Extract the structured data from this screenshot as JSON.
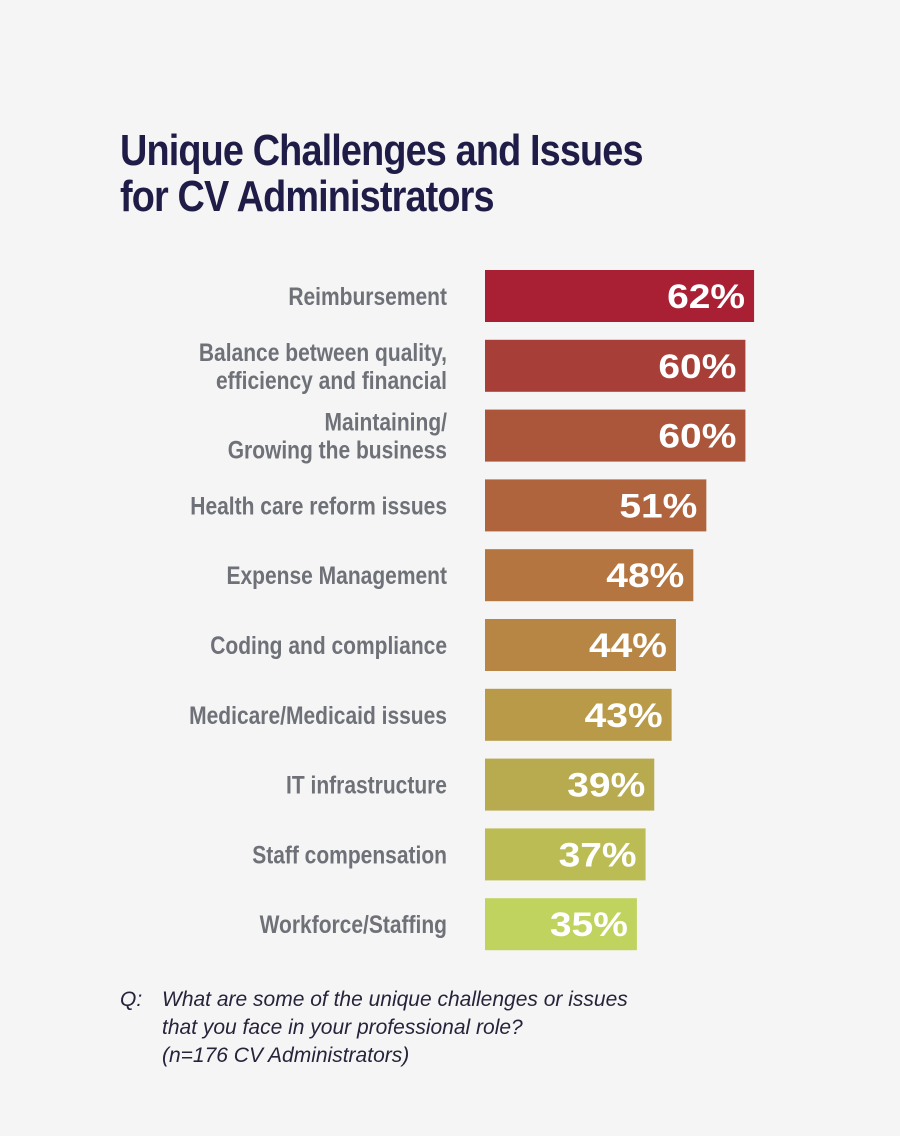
{
  "chart_data": {
    "type": "bar",
    "orientation": "horizontal",
    "title": "Unique Challenges and Issues for CV Administrators",
    "title_lines": [
      "Unique Challenges and Issues",
      "for CV Administrators"
    ],
    "categories": [
      "Reimbursement",
      "Balance between quality, efficiency and financial",
      "Maintaining/ Growing the business",
      "Health care reform issues",
      "Expense Management",
      "Coding and compliance",
      "Medicare/Medicaid issues",
      "IT infrastructure",
      "Staff compensation",
      "Workforce/Staffing"
    ],
    "category_lines": [
      [
        "Reimbursement"
      ],
      [
        "Balance between quality,",
        "efficiency and financial"
      ],
      [
        "Maintaining/",
        "Growing the business"
      ],
      [
        "Health care reform issues"
      ],
      [
        "Expense Management"
      ],
      [
        "Coding and compliance"
      ],
      [
        "Medicare/Medicaid issues"
      ],
      [
        "IT infrastructure"
      ],
      [
        "Staff compensation"
      ],
      [
        "Workforce/Staffing"
      ]
    ],
    "values": [
      62,
      60,
      60,
      51,
      48,
      44,
      43,
      39,
      37,
      35
    ],
    "value_labels": [
      "62%",
      "60%",
      "60%",
      "51%",
      "48%",
      "44%",
      "43%",
      "39%",
      "37%",
      "35%"
    ],
    "colors": [
      "#a92035",
      "#a73e38",
      "#ab553a",
      "#b0643d",
      "#b47540",
      "#b78645",
      "#b89a48",
      "#b7aa4f",
      "#bcbc55",
      "#bfd35e"
    ],
    "xlabel": "",
    "ylabel": "",
    "xlim": [
      0,
      100
    ],
    "grid": false,
    "legend": "none"
  },
  "footnote": {
    "prefix": "Q:",
    "lines": [
      "What are some of the unique challenges or issues",
      "that you face in your professional role?",
      "(n=176 CV Administrators)"
    ]
  }
}
